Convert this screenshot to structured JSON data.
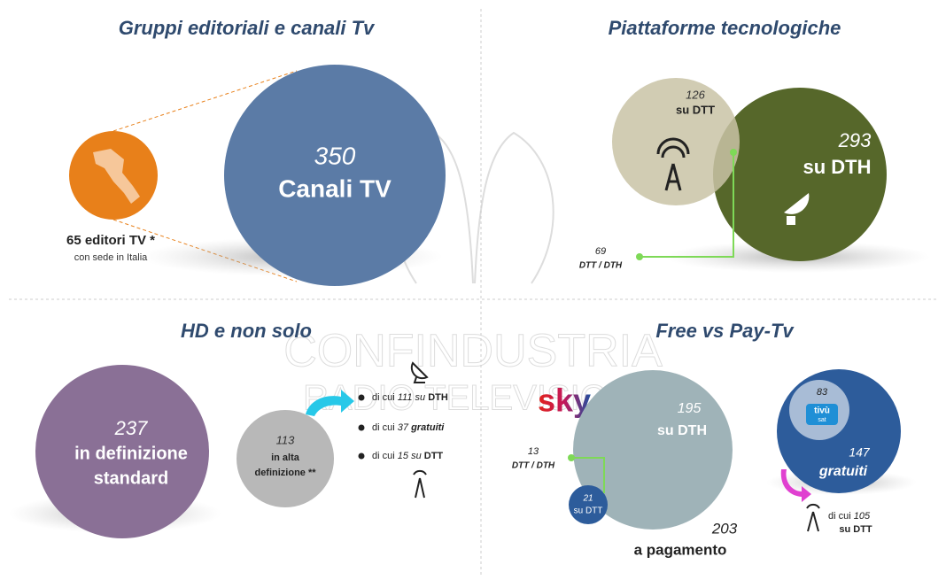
{
  "watermark": [
    "CONFINDUSTRIA",
    "RADIO TELEVISIONI"
  ],
  "panels": [
    {
      "title": "Gruppi editoriali e canali Tv",
      "editori": {
        "label": "65 editori TV *",
        "sub": "con sede in Italia"
      },
      "canali": {
        "value": 350,
        "label": "Canali TV"
      }
    },
    {
      "title": "Piattaforme tecnologiche",
      "dtt": {
        "value": 126,
        "label": "su DTT"
      },
      "dth": {
        "value": 293,
        "label": "su DTH"
      },
      "both": {
        "value": 69,
        "label": "DTT / DTH"
      }
    },
    {
      "title": "HD e non solo",
      "sd": {
        "value": 237,
        "label": [
          "in definizione",
          "standard"
        ]
      },
      "hd": {
        "value": 113,
        "label": [
          "in alta",
          "definizione **"
        ]
      },
      "bullets": [
        {
          "prefix": "di cui",
          "value": 111,
          "mid": "su",
          "bold": "DTH"
        },
        {
          "prefix": "di cui",
          "value": 37,
          "bold": "gratuiti"
        },
        {
          "prefix": "di cui",
          "value": 15,
          "mid": "su",
          "bold": "DTT"
        }
      ]
    },
    {
      "title": "Free vs Pay-Tv",
      "logos": [
        "sky",
        "tivù",
        "sat"
      ],
      "dth": {
        "value": 195,
        "label": "su DTH"
      },
      "dtt": {
        "value": 21,
        "label": "su DTT"
      },
      "both": {
        "value": 13,
        "label": "DTT / DTH"
      },
      "pay": {
        "value": 203,
        "label": "a pagamento"
      },
      "free": {
        "value": 147,
        "label": "gratuiti",
        "tivusat": 83
      },
      "free_dtt": {
        "prefix": "di cui",
        "value": 105,
        "label": "su DTT"
      }
    }
  ]
}
